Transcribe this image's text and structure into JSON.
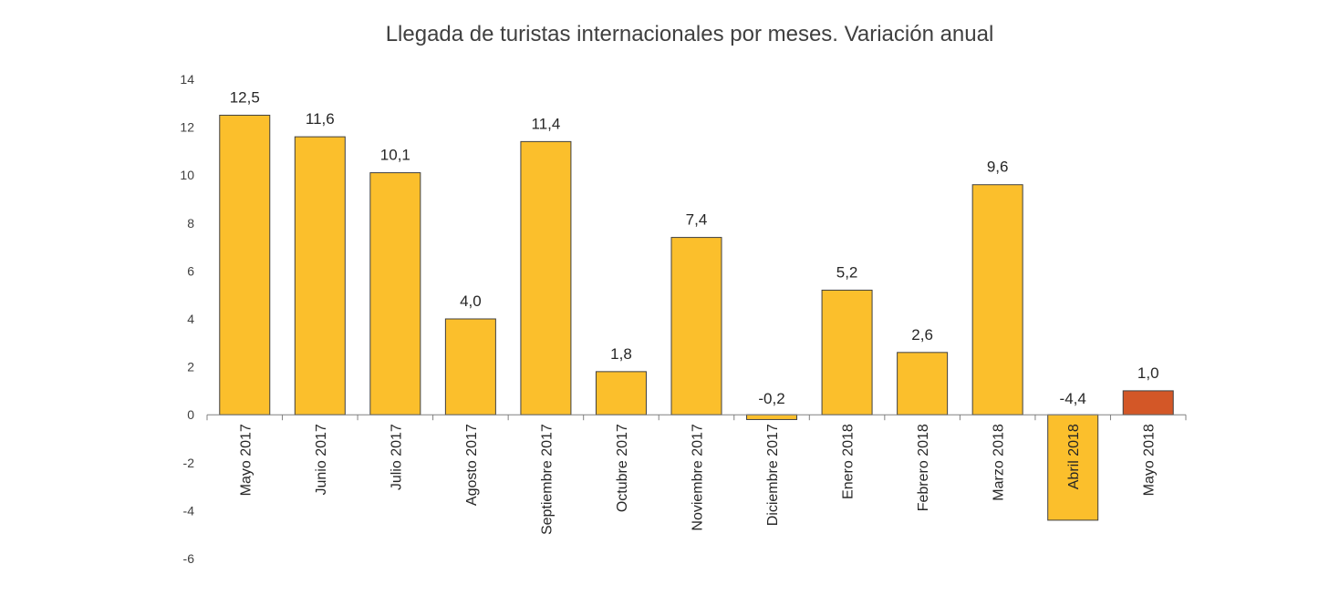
{
  "chart_data": {
    "type": "bar",
    "title": "Llegada de turistas internacionales por meses. Variación anual",
    "categories": [
      "Mayo 2017",
      "Junio 2017",
      "Julio 2017",
      "Agosto 2017",
      "Septiembre 2017",
      "Octubre 2017",
      "Noviembre 2017",
      "Diciembre 2017",
      "Enero 2018",
      "Febrero 2018",
      "Marzo 2018",
      "Abril 2018",
      "Mayo 2018"
    ],
    "values": [
      12.5,
      11.6,
      10.1,
      4.0,
      11.4,
      1.8,
      7.4,
      -0.2,
      5.2,
      2.6,
      9.6,
      -4.4,
      1.0
    ],
    "value_labels": [
      "12,5",
      "11,6",
      "10,1",
      "4,0",
      "11,4",
      "1,8",
      "7,4",
      "-0,2",
      "5,2",
      "2,6",
      "9,6",
      "-4,4",
      "1,0"
    ],
    "yticks": [
      14,
      12,
      10,
      8,
      6,
      4,
      2,
      0,
      -2,
      -4,
      -6
    ],
    "ylim": [
      -6,
      14
    ],
    "xlabel": "",
    "ylabel": "",
    "grid": false,
    "legend": "none",
    "colors": {
      "bar": "#FBBF2C",
      "highlight": "#D35727",
      "highlight_index": 12,
      "axis": "#808080",
      "outline": "#404040"
    }
  }
}
